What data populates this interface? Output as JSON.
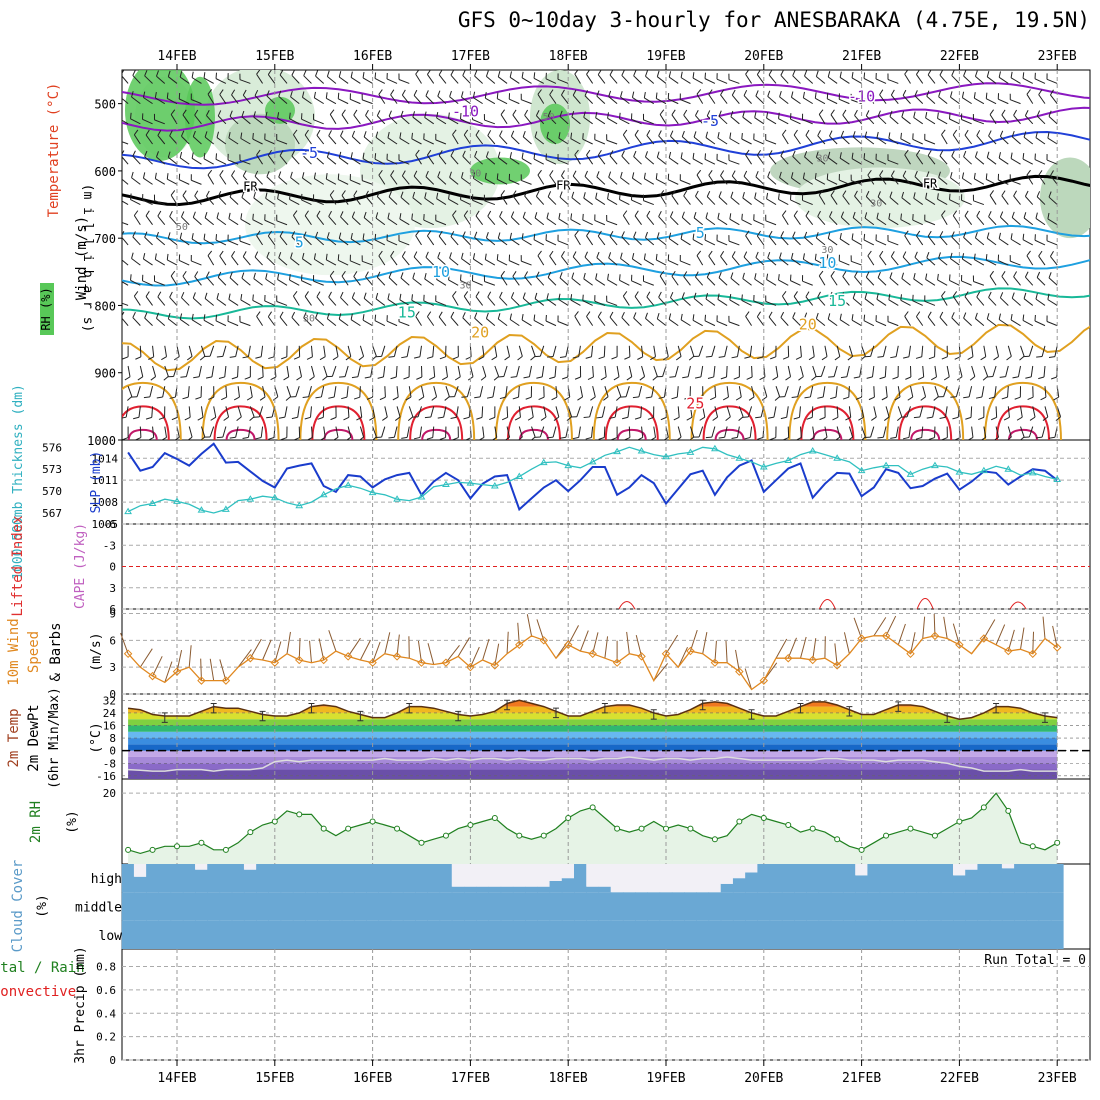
{
  "title": "GFS 0~10day 3-hourly for ANESBARAKA (4.75E, 19.5N)",
  "date_labels": [
    "14FEB",
    "15FEB",
    "16FEB",
    "17FEB",
    "18FEB",
    "19FEB",
    "20FEB",
    "21FEB",
    "22FEB",
    "23FEB"
  ],
  "colors": {
    "rh_green": "#58c858",
    "temp_purple": "#8a18c0",
    "temp_blue": "#2040d8",
    "temp_cyan": "#1ea0e0",
    "temp_teal": "#18b898",
    "temp_orange": "#e0a020",
    "temp_red": "#e02030",
    "slp_line": "#1a3ccc",
    "thick_line": "#30c0c0",
    "wind_line": "#e08820",
    "rh2m_line": "#208020",
    "cloud": "#6aa8d4"
  },
  "chart_data": [
    {
      "type": "contour",
      "panel": "upper-air",
      "ylabel_parts": [
        "RH (%)",
        "Temperature",
        "(°C)",
        "Wind (m/s)",
        "(milllibars)"
      ],
      "ylabel_units": "(m i l l i b a r s)",
      "y_ticks": [
        500,
        600,
        700,
        800,
        900,
        1000
      ],
      "ylim": [
        450,
        1000
      ],
      "temperature_labels": [
        {
          "text": "-10",
          "day": 7.0,
          "p": 497
        },
        {
          "text": "-10",
          "day": 2.95,
          "p": 519
        },
        {
          "text": "-5",
          "day": 5.45,
          "p": 533
        },
        {
          "text": "-5",
          "day": 1.35,
          "p": 581
        },
        {
          "text": "FR",
          "day": 0.75,
          "p": 629
        },
        {
          "text": "FR",
          "day": 3.95,
          "p": 628
        },
        {
          "text": "FR",
          "day": 7.7,
          "p": 625
        },
        {
          "text": "5",
          "day": 1.25,
          "p": 714
        },
        {
          "text": "5",
          "day": 5.35,
          "p": 700
        },
        {
          "text": "10",
          "day": 2.7,
          "p": 758
        },
        {
          "text": "10",
          "day": 6.65,
          "p": 744
        },
        {
          "text": "15",
          "day": 2.35,
          "p": 818
        },
        {
          "text": "15",
          "day": 6.75,
          "p": 801
        },
        {
          "text": "20",
          "day": 3.1,
          "p": 848
        },
        {
          "text": "20",
          "day": 6.45,
          "p": 836
        },
        {
          "text": "25",
          "day": 5.3,
          "p": 953
        }
      ],
      "rh_labels": [
        {
          "text": "50",
          "day": 3.8,
          "p": 524
        },
        {
          "text": "30",
          "day": 3.05,
          "p": 608
        },
        {
          "text": "30",
          "day": 6.6,
          "p": 586
        },
        {
          "text": "30",
          "day": 7.15,
          "p": 653
        },
        {
          "text": "30",
          "day": 6.65,
          "p": 722
        },
        {
          "text": "30",
          "day": 2.95,
          "p": 775
        },
        {
          "text": "30",
          "day": 1.35,
          "p": 824
        },
        {
          "text": "50",
          "day": 0.05,
          "p": 688
        }
      ]
    },
    {
      "type": "line",
      "panel": "slp-thickness",
      "ylabel_left": "1000-500mb Thickness (dm)",
      "ylabel_right": "SLP (mb)",
      "thickness_ticks": [
        567,
        570,
        573,
        576
      ],
      "slp_ticks": [
        1005,
        1008,
        1011,
        1014
      ],
      "slp_ylim": [
        1005,
        1016.5
      ],
      "series": [
        {
          "name": "SLP",
          "values": [
            1014.8,
            1012.3,
            1012.8,
            1014.7,
            1013.9,
            1013.0,
            1014.6,
            1016.0,
            1013.4,
            1013.5,
            1012.2,
            1010.9,
            1010.0,
            1012.6,
            1013.0,
            1013.3,
            1010.2,
            1009.4,
            1011.7,
            1011.5,
            1010.0,
            1011.1,
            1011.7,
            1012.0,
            1009.0,
            1010.8,
            1012.0,
            1011.0,
            1008.5,
            1010.5,
            1011.5,
            1011.7,
            1007.0,
            1008.5,
            1010.0,
            1011.0,
            1009.5,
            1011.0,
            1012.8,
            1012.8,
            1009.0,
            1010.0,
            1011.7,
            1010.6,
            1007.8,
            1009.8,
            1011.8,
            1012.3,
            1009.0,
            1011.4,
            1013.0,
            1013.7,
            1009.4,
            1011.0,
            1012.6,
            1013.3,
            1008.6,
            1010.5,
            1012.0,
            1011.9,
            1008.8,
            1010.0,
            1012.5,
            1012.0,
            1009.9,
            1010.2,
            1011.2,
            1011.9,
            1009.7,
            1010.8,
            1012.2,
            1012.0,
            1010.4,
            1011.5,
            1012.5,
            1012.3,
            1011.0
          ]
        },
        {
          "name": "Thickness",
          "values": [
            567.2,
            568.0,
            568.3,
            568.9,
            568.6,
            568.2,
            567.4,
            567.0,
            567.5,
            568.7,
            568.9,
            569.3,
            569.1,
            568.4,
            568.0,
            568.5,
            569.5,
            570.3,
            570.8,
            570.4,
            569.8,
            569.5,
            568.9,
            568.7,
            569.2,
            570.6,
            570.9,
            571.2,
            571.1,
            570.9,
            570.7,
            571.2,
            572.0,
            573.0,
            573.9,
            574.0,
            573.5,
            573.2,
            574.0,
            574.9,
            575.4,
            576.0,
            575.5,
            575.0,
            574.7,
            575.1,
            575.3,
            576.0,
            575.8,
            575.0,
            574.5,
            574.0,
            573.3,
            573.8,
            574.2,
            575.0,
            575.5,
            575.0,
            574.5,
            574.0,
            572.8,
            573.2,
            573.5,
            573.5,
            572.3,
            573.0,
            573.5,
            573.3,
            572.6,
            572.3,
            572.8,
            573.4,
            573.0,
            572.2,
            572.5,
            572.0,
            571.6
          ]
        }
      ]
    },
    {
      "type": "line",
      "panel": "cape-li",
      "ylabel_left": "Lifted Index",
      "ylabel_right": "CAPE (J/kg)",
      "li_ticks": [
        -6,
        -3,
        0,
        3,
        6
      ],
      "series": [
        {
          "name": "CAPE",
          "values": []
        }
      ]
    },
    {
      "type": "line",
      "panel": "wind10m",
      "ylabel": "10m Wind Speed (m/s) & Barbs",
      "y_ticks": [
        0,
        3,
        6,
        9
      ],
      "ylim": [
        0,
        9.5
      ],
      "series": [
        {
          "name": "10m Wind Speed",
          "values": [
            4.5,
            3.0,
            2.0,
            1.3,
            2.5,
            3.0,
            1.5,
            1.5,
            1.5,
            3.0,
            4.0,
            3.8,
            3.5,
            4.5,
            3.8,
            3.5,
            3.8,
            4.8,
            4.2,
            3.8,
            3.5,
            4.5,
            4.2,
            4.0,
            3.5,
            3.3,
            3.5,
            4.2,
            3.0,
            3.8,
            3.2,
            4.5,
            5.5,
            6.5,
            6.0,
            4.0,
            5.5,
            4.8,
            4.5,
            4.0,
            3.5,
            4.5,
            4.2,
            1.5,
            4.5,
            3.0,
            4.8,
            4.5,
            3.5,
            3.5,
            2.5,
            0.5,
            1.5,
            4.0,
            4.0,
            4.0,
            3.8,
            4.0,
            3.2,
            4.5,
            6.2,
            6.5,
            6.5,
            5.5,
            4.5,
            6.2,
            6.5,
            6.2,
            5.5,
            4.5,
            6.2,
            5.5,
            4.8,
            5.0,
            4.5,
            6.2,
            5.2
          ]
        }
      ]
    },
    {
      "type": "area",
      "panel": "temp2m",
      "ylabel": "2m Temp 2m DewPt (6hr Min/Max) (°C)",
      "y_ticks": [
        -16,
        -8,
        0,
        8,
        16,
        24,
        32
      ],
      "ylim": [
        -18,
        36
      ],
      "series": [
        {
          "name": "2m Temp",
          "values": [
            27,
            26,
            23,
            22,
            22,
            22,
            25,
            28,
            27,
            27,
            25,
            23,
            22,
            22,
            24,
            28,
            29,
            28,
            25,
            23,
            21,
            21,
            24,
            28,
            28,
            27,
            25,
            23,
            22,
            23,
            25,
            30,
            32,
            30,
            28,
            25,
            22,
            22,
            25,
            28,
            29,
            29,
            27,
            24,
            22,
            23,
            26,
            30,
            31,
            30,
            27,
            24,
            22,
            22,
            25,
            28,
            31,
            31,
            29,
            26,
            23,
            23,
            26,
            29,
            29,
            28,
            25,
            22,
            20,
            21,
            24,
            28,
            28,
            27,
            24,
            22,
            21
          ]
        },
        {
          "name": "2m DewPt",
          "values": [
            -12,
            -12.5,
            -13,
            -13,
            -12,
            -12,
            -12,
            -13,
            -12,
            -12,
            -12,
            -11,
            -7,
            -6,
            -7,
            -6,
            -6,
            -6,
            -6,
            -6,
            -6,
            -5,
            -6,
            -6,
            -6,
            -5,
            -6,
            -5,
            -6,
            -5,
            -5,
            -6,
            -5,
            -6,
            -6,
            -5,
            -5,
            -5,
            -6,
            -5,
            -5,
            -4,
            -5,
            -6,
            -5,
            -5,
            -6,
            -5,
            -5,
            -4,
            -5,
            -6,
            -6,
            -6,
            -6,
            -6,
            -6,
            -5,
            -5,
            -6,
            -6,
            -6,
            -7,
            -6,
            -6,
            -6,
            -7,
            -8,
            -10,
            -11,
            -13,
            -13,
            -13,
            -12,
            -13,
            -13,
            -13
          ]
        }
      ]
    },
    {
      "type": "line",
      "panel": "rh2m",
      "ylabel": "2m RH (%)",
      "y_ticks": [
        20
      ],
      "ylim": [
        0,
        24
      ],
      "series": [
        {
          "name": "2m RH",
          "values": [
            4,
            3,
            4,
            5,
            5,
            5,
            6,
            4,
            4,
            6,
            9,
            11,
            12,
            15,
            14,
            14,
            10,
            8,
            10,
            11,
            12,
            11,
            10,
            8,
            6,
            7,
            8,
            10,
            11,
            12,
            13,
            10,
            8,
            7,
            8,
            10,
            13,
            15,
            16,
            13,
            10,
            9,
            10,
            12,
            10,
            11,
            10,
            8,
            7,
            8,
            12,
            14,
            13,
            12,
            11,
            9,
            10,
            9,
            7,
            5,
            4,
            6,
            8,
            9,
            10,
            9,
            8,
            10,
            12,
            13,
            16,
            20,
            15,
            6,
            5,
            4,
            6
          ]
        }
      ]
    },
    {
      "type": "bar",
      "panel": "cloud",
      "ylabel": "Cloud Cover (%)",
      "levels": [
        "high",
        "middle",
        "low"
      ],
      "series": [
        {
          "name": "high",
          "values": [
            100,
            55,
            100,
            100,
            100,
            100,
            80,
            100,
            100,
            100,
            80,
            100,
            100,
            100,
            100,
            100,
            100,
            100,
            100,
            100,
            100,
            100,
            100,
            100,
            100,
            100,
            100,
            20,
            20,
            20,
            20,
            20,
            20,
            20,
            20,
            40,
            50,
            100,
            20,
            20,
            0,
            0,
            0,
            0,
            0,
            0,
            0,
            0,
            0,
            30,
            50,
            70,
            100,
            100,
            100,
            100,
            100,
            100,
            100,
            100,
            60,
            100,
            100,
            100,
            100,
            100,
            100,
            100,
            60,
            80,
            100,
            100,
            85,
            100,
            100,
            100,
            100
          ]
        },
        {
          "name": "middle",
          "values": [
            100,
            100,
            100,
            100,
            100,
            100,
            100,
            100,
            100,
            100,
            100,
            100,
            100,
            100,
            100,
            100,
            100,
            100,
            100,
            100,
            100,
            100,
            100,
            100,
            100,
            100,
            100,
            100,
            100,
            100,
            100,
            100,
            100,
            100,
            100,
            100,
            100,
            100,
            100,
            100,
            100,
            100,
            100,
            100,
            100,
            100,
            100,
            100,
            100,
            100,
            100,
            100,
            100,
            100,
            100,
            100,
            100,
            100,
            100,
            100,
            100,
            100,
            100,
            100,
            100,
            100,
            100,
            100,
            100,
            100,
            100,
            100,
            100,
            100,
            100,
            100,
            100
          ]
        },
        {
          "name": "low",
          "values": [
            100,
            100,
            100,
            100,
            100,
            100,
            100,
            100,
            100,
            100,
            100,
            100,
            100,
            100,
            100,
            100,
            100,
            100,
            100,
            100,
            100,
            100,
            100,
            100,
            100,
            100,
            100,
            100,
            100,
            100,
            100,
            100,
            100,
            100,
            100,
            100,
            100,
            100,
            100,
            100,
            100,
            100,
            100,
            100,
            100,
            100,
            100,
            100,
            100,
            100,
            100,
            100,
            100,
            100,
            100,
            100,
            100,
            100,
            100,
            100,
            100,
            100,
            100,
            100,
            100,
            100,
            100,
            100,
            100,
            100,
            100,
            100,
            100,
            100,
            100,
            100,
            100
          ]
        }
      ]
    },
    {
      "type": "bar",
      "panel": "precip",
      "ylabel_left_1": "Total / Rain",
      "ylabel_left_2": "Convective",
      "ylabel": "3hr Precip (mm)",
      "run_total_label": "Run Total = 0",
      "y_ticks": [
        0,
        0.2,
        0.4,
        0.6,
        0.8
      ],
      "ylim": [
        0,
        0.95
      ],
      "series": [
        {
          "name": "3hr Precip",
          "values": []
        }
      ]
    }
  ]
}
